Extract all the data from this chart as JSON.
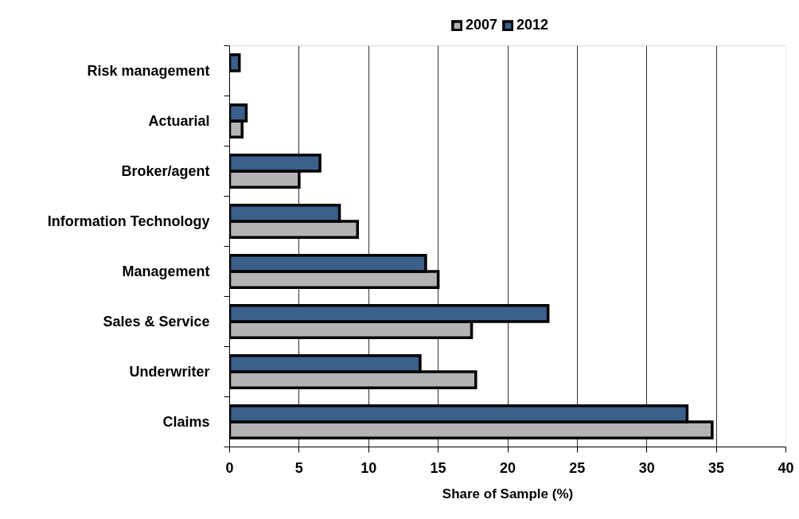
{
  "chart_data": {
    "type": "bar",
    "orientation": "horizontal",
    "categories": [
      "Risk management",
      "Actuarial",
      "Broker/agent",
      "Information Technology",
      "Management",
      "Sales & Service",
      "Underwriter",
      "Claims"
    ],
    "series": [
      {
        "name": "2007",
        "color": "#b4b4b4",
        "values": [
          null,
          0.9,
          5.0,
          9.2,
          15.0,
          17.4,
          17.7,
          34.7
        ]
      },
      {
        "name": "2012",
        "color": "#3a5f8a",
        "values": [
          0.7,
          1.2,
          6.5,
          7.9,
          14.1,
          22.9,
          13.7,
          32.9
        ]
      }
    ],
    "xlabel": "Share of Sample (%)",
    "xlim": [
      0,
      40
    ],
    "xticks": [
      0,
      5,
      10,
      15,
      20,
      25,
      30,
      35,
      40
    ],
    "grid": "x",
    "legend": "top"
  }
}
